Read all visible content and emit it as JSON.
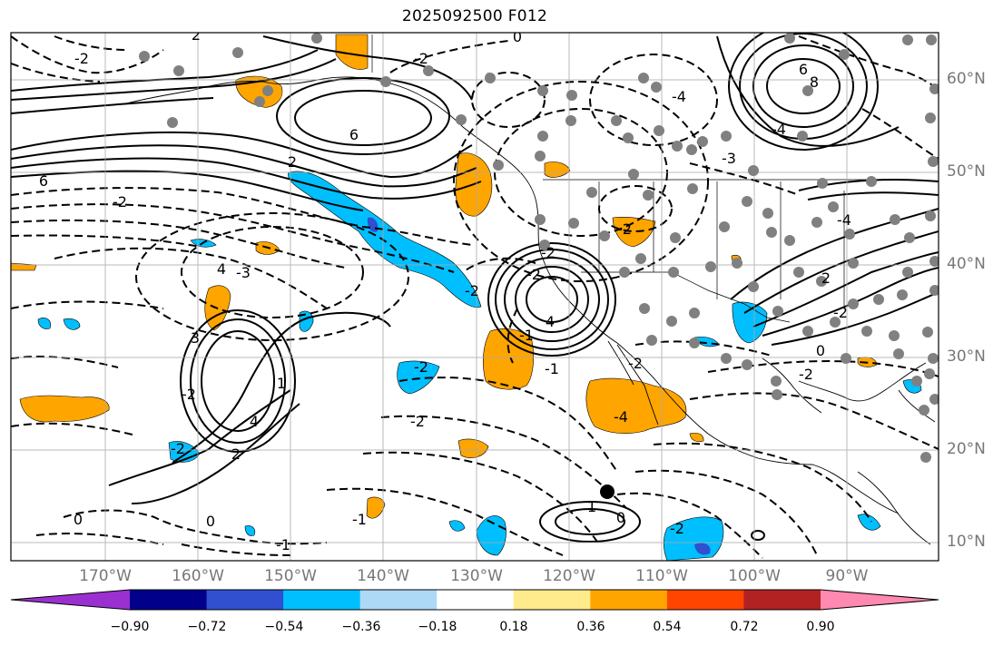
{
  "title": "2025092500 F012",
  "lat_labels": [
    "60°N",
    "50°N",
    "40°N",
    "30°N",
    "20°N",
    "10°N"
  ],
  "lon_labels": [
    "170°W",
    "160°W",
    "150°W",
    "140°W",
    "130°W",
    "120°W",
    "110°W",
    "100°W",
    "90°W"
  ],
  "colorbar": {
    "ticks": [
      "−0.90",
      "−0.72",
      "−0.54",
      "−0.36",
      "−0.18",
      "0.18",
      "0.36",
      "0.54",
      "0.72",
      "0.90"
    ],
    "colors": [
      "#9b30d0",
      "#00008b",
      "#3050d0",
      "#00bfff",
      "#add8f6",
      "#ffffff",
      "#ffea8c",
      "#ffa500",
      "#ff4500",
      "#b22222",
      "#ff89b0"
    ]
  },
  "colors": {
    "positive_shading": "#ffa500",
    "negative_shading": "#00bfff",
    "dark_negative_shading": "#3050d0",
    "stations": "#808080",
    "grid": "#aaaaaa"
  },
  "contour_labels": [
    "2",
    "0",
    "-2",
    "-2",
    "6",
    "6",
    "-4",
    "6",
    "8",
    "-4",
    "-3",
    "2",
    "-2",
    "4",
    "-3",
    "-2",
    "-2",
    "4",
    "-2",
    "2",
    "-4",
    "-2",
    "-2",
    "0",
    "-1",
    "-2",
    "-2",
    "1",
    "2",
    "-4",
    "-2",
    "-2",
    "0",
    "-2",
    "-1",
    "1",
    "0",
    "-2",
    "0",
    "-1",
    "3",
    "4",
    "-1",
    "-2"
  ],
  "marker": "large black dot near 15°N 116°W"
}
